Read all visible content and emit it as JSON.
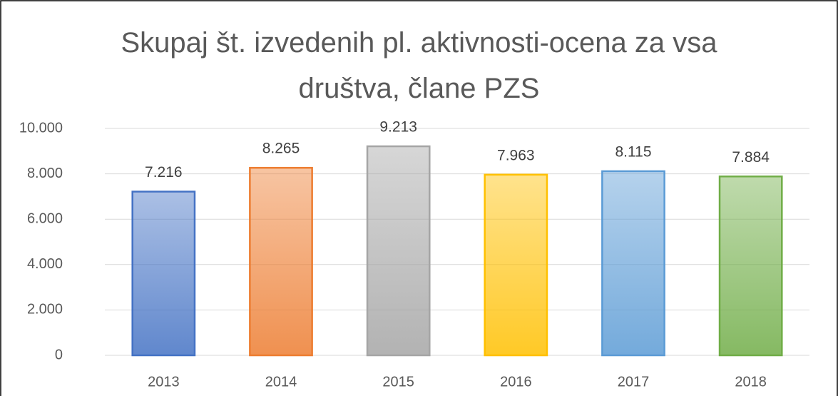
{
  "chart_data": {
    "type": "bar",
    "title": "Skupaj št. izvedenih pl. aktivnosti-ocena za vsa društva, člane PZS",
    "categories": [
      "2013",
      "2014",
      "2015",
      "2016",
      "2017",
      "2018"
    ],
    "values": [
      7216,
      8265,
      9213,
      7963,
      8115,
      7884
    ],
    "value_labels": [
      "7.216",
      "8.265",
      "9.213",
      "7.963",
      "8.115",
      "7.884"
    ],
    "colors": [
      "#4472c4",
      "#ed7d31",
      "#a5a5a5",
      "#ffc000",
      "#5b9bd5",
      "#70ad47"
    ],
    "ylim": [
      0,
      10000
    ],
    "yticks": [
      0,
      {
        "value": 2000,
        "label": "2.000"
      },
      {
        "value": 4000,
        "label": "4.000"
      },
      {
        "value": 6000,
        "label": "6.000"
      },
      {
        "value": 8000,
        "label": "8.000"
      },
      {
        "value": 10000,
        "label": "10.000"
      }
    ],
    "grid": true
  }
}
